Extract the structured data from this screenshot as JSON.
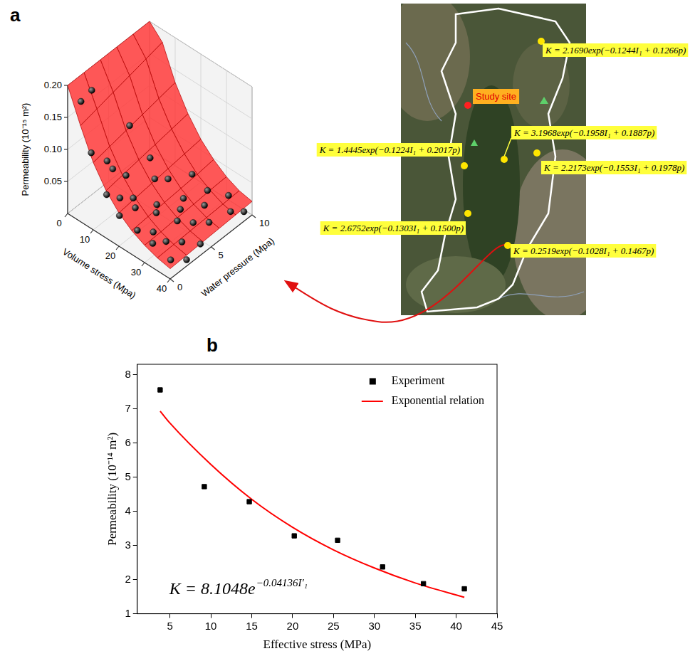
{
  "chart_data": [
    {
      "panel": "a",
      "type": "surface3d",
      "xlabel": "Volume stress (Mpa)",
      "ylabel": "Water pressure (Mpa)",
      "zlabel": "Permeability (10⁻¹⁵ m²)",
      "xlim": [
        0,
        40
      ],
      "xticks": [
        0,
        10,
        20,
        30,
        40
      ],
      "ylim": [
        0,
        10
      ],
      "yticks": [
        0,
        5,
        10
      ],
      "zlim": [
        0,
        0.2
      ],
      "zticks": [
        0.05,
        {
          "value": 0.1,
          "label": "0.10"
        },
        0.15,
        {
          "value": 0.2,
          "label": "0.20"
        }
      ],
      "grid": true,
      "surface": {
        "color": "#ff3b3b",
        "x": [
          0,
          5,
          10,
          15,
          20,
          25,
          30,
          35,
          40
        ],
        "y": [
          0,
          2,
          4,
          6,
          8,
          10
        ],
        "z": [
          [
            0.2,
            0.15,
            0.105,
            0.074,
            0.052,
            0.037,
            0.027,
            0.02,
            0.016
          ],
          [
            0.2,
            0.156,
            0.11,
            0.078,
            0.055,
            0.039,
            0.028,
            0.021,
            0.017
          ],
          [
            0.2,
            0.162,
            0.115,
            0.082,
            0.058,
            0.041,
            0.03,
            0.022,
            0.018
          ],
          [
            0.2,
            0.168,
            0.12,
            0.086,
            0.061,
            0.043,
            0.031,
            0.023,
            0.019
          ],
          [
            0.2,
            0.174,
            0.125,
            0.09,
            0.064,
            0.045,
            0.033,
            0.024,
            0.02
          ],
          [
            0.2,
            0.18,
            0.13,
            0.094,
            0.067,
            0.048,
            0.034,
            0.025,
            0.021
          ]
        ]
      },
      "points": {
        "color": "#000000",
        "marker": "sphere",
        "x": [
          2,
          3,
          6,
          9,
          5,
          8,
          12,
          10,
          14,
          13,
          16,
          18,
          17,
          20,
          20,
          22,
          23,
          24,
          25,
          26,
          27,
          28,
          29,
          30,
          30,
          31,
          32,
          33,
          34,
          35,
          36,
          37,
          38,
          39,
          40,
          40
        ],
        "y": [
          1,
          2,
          1,
          2,
          6,
          3,
          1,
          4,
          2,
          6,
          3,
          5,
          1,
          2,
          6,
          4,
          8,
          1,
          3,
          6,
          2,
          5,
          8,
          1,
          4,
          7,
          2,
          5,
          9,
          3,
          6,
          1,
          8,
          4,
          2,
          9
        ],
        "z": [
          0.17,
          0.18,
          0.1,
          0.085,
          0.09,
          0.06,
          0.05,
          0.045,
          0.04,
          0.06,
          0.035,
          0.05,
          0.03,
          0.04,
          0.045,
          0.03,
          0.04,
          0.025,
          0.035,
          0.03,
          0.02,
          0.028,
          0.03,
          0.02,
          0.025,
          0.022,
          0.018,
          0.02,
          0.025,
          0.015,
          0.018,
          0.012,
          0.02,
          0.012,
          0.01,
          0.015
        ]
      }
    },
    {
      "panel": "b",
      "type": "scatter",
      "xlabel": "Effective stress (MPa)",
      "ylabel": "Permeability (10⁻¹⁴ m²)",
      "xlim": [
        1,
        45
      ],
      "xticks": [
        5,
        10,
        15,
        20,
        25,
        30,
        35,
        40,
        45
      ],
      "ylim": [
        1,
        8.3
      ],
      "yticks": [
        1,
        2,
        3,
        4,
        5,
        6,
        7,
        8
      ],
      "grid": false,
      "legend": "upper right",
      "series": [
        {
          "name": "Experiment",
          "type": "scatter",
          "marker": "square",
          "color": "#000000",
          "x": [
            3.8,
            9.2,
            14.7,
            20.2,
            25.5,
            31,
            36,
            41
          ],
          "values": [
            7.55,
            4.72,
            4.28,
            3.28,
            3.15,
            2.37,
            1.88,
            1.73
          ]
        },
        {
          "name": "Exponential relation",
          "type": "line",
          "line_style": "solid",
          "color": "#ff0000",
          "x": [
            3.8,
            5,
            10,
            15,
            20,
            25,
            30,
            35,
            41
          ],
          "values": [
            6.93,
            6.58,
            5.37,
            4.35,
            3.53,
            2.87,
            2.34,
            1.9,
            1.48
          ]
        }
      ],
      "annotation": {
        "text": "K = 8.1048e",
        "exponent": "−0.04136I′₁"
      }
    }
  ],
  "map": {
    "panel": "a",
    "study_site": "Study site",
    "annotations": [
      "K = 2.1690exp(−0.1244I₁ + 0.1266p)",
      "K = 3.1968exp(−0.1958I₁ + 0.1887p)",
      "K = 1.4445exp(−0.1224I₁ + 0.2017p)",
      "K = 2.2173exp(−0.1553I₁ + 0.1978p)",
      "K = 2.6752exp(−0.1303I₁ + 0.1500p)",
      "K = 0.2519exp(−0.1028I₁ + 0.1467p)"
    ]
  }
}
